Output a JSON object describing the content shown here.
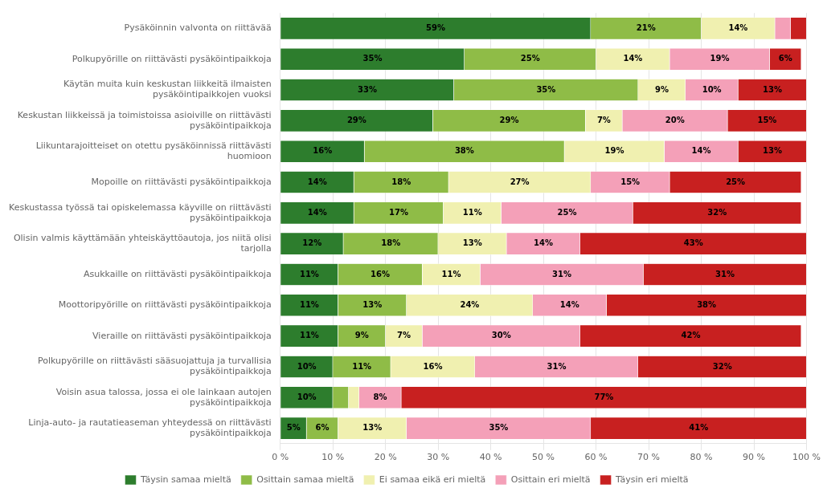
{
  "chart_data": {
    "type": "bar",
    "orientation": "horizontal",
    "stacked": true,
    "categories": [
      "Pysäköinnin valvonta on riittävää",
      "Polkupyörille on riittävästi pysäköintipaikkoja",
      "Käytän muita kuin keskustan liikkeitä ilmaisten\npysäköintipaikkojen vuoksi",
      "Keskustan liikkeissä ja toimistoissa asioiville on riittävästi\npysäköintipaikkoja",
      "Liikuntarajoitteiset on otettu pysäköinnissä riittävästi\nhuomioon",
      "Mopoille on riittävästi pysäköintipaikkoja",
      "Keskustassa työssä tai opiskelemassa käyville on riittävästi\npysäköintipaikkoja",
      "Olisin valmis käyttämään yhteiskäyttöautoja, jos niitä olisi\ntarjolla",
      "Asukkaille on riittävästi pysäköintipaikkoja",
      "Moottoripyörille on riittävästi pysäköintipaikkoja",
      "Vieraille on riittävästi pysäköintipaikkoja",
      "Polkupyörille on riittävästi sääsuojattuja ja turvallisia\npysäköintipaikkoja",
      "Voisin asua talossa, jossa ei ole lainkaan autojen\npysäköintipaikkoja",
      "Linja-auto- ja rautatieaseman yhteydessä on riittävästi\npysäköintipaikkoja"
    ],
    "series": [
      {
        "name": "Täysin samaa mieltä",
        "color": "#2d7d2d",
        "values": [
          59,
          35,
          33,
          29,
          16,
          14,
          14,
          12,
          11,
          11,
          11,
          10,
          10,
          5
        ],
        "value_labels": [
          "59%",
          "35%",
          "33%",
          "29%",
          "16%",
          "14%",
          "14%",
          "12%",
          "11%",
          "11%",
          "11%",
          "10%",
          "10%",
          "5%"
        ]
      },
      {
        "name": "Osittain samaa mieltä",
        "color": "#8fbc47",
        "values": [
          21,
          25,
          35,
          29,
          38,
          18,
          17,
          18,
          16,
          13,
          9,
          11,
          3,
          6
        ],
        "value_labels": [
          "21%",
          "25%",
          "35%",
          "29%",
          "38%",
          "18%",
          "17%",
          "18%",
          "16%",
          "13%",
          "9%",
          "11%",
          null,
          "6%"
        ]
      },
      {
        "name": "Ei samaa eikä eri mieltä",
        "color": "#f0f0b0",
        "values": [
          14,
          14,
          9,
          7,
          19,
          27,
          11,
          13,
          11,
          24,
          7,
          16,
          2,
          13
        ],
        "value_labels": [
          "14%",
          "14%",
          "9%",
          "7%",
          "19%",
          "27%",
          "11%",
          "13%",
          "11%",
          "24%",
          "7%",
          "16%",
          null,
          "13%"
        ]
      },
      {
        "name": "Osittain eri mieltä",
        "color": "#f4a0b8",
        "values": [
          3,
          19,
          10,
          20,
          14,
          15,
          25,
          14,
          31,
          14,
          30,
          31,
          8,
          35
        ],
        "value_labels": [
          null,
          "19%",
          "10%",
          "20%",
          "14%",
          "15%",
          "25%",
          "14%",
          "31%",
          "14%",
          "30%",
          "31%",
          "8%",
          "35%"
        ]
      },
      {
        "name": "Täysin eri mieltä",
        "color": "#c82020",
        "values": [
          3,
          6,
          13,
          15,
          13,
          25,
          32,
          43,
          31,
          38,
          42,
          32,
          77,
          41
        ],
        "value_labels": [
          null,
          "6%",
          "13%",
          "15%",
          "13%",
          "25%",
          "32%",
          "43%",
          "31%",
          "38%",
          "42%",
          "32%",
          "77%",
          "41%"
        ]
      }
    ],
    "xlim": [
      0,
      100
    ],
    "xticks": [
      {
        "value": 0,
        "label": "0 %"
      },
      {
        "value": 10,
        "label": "10 %"
      },
      {
        "value": 20,
        "label": "20 %"
      },
      {
        "value": 30,
        "label": "30 %"
      },
      {
        "value": 40,
        "label": "40 %"
      },
      {
        "value": 50,
        "label": "50 %"
      },
      {
        "value": 60,
        "label": "60 %"
      },
      {
        "value": 70,
        "label": "70 %"
      },
      {
        "value": 80,
        "label": "80 %"
      },
      {
        "value": 90,
        "label": "90 %"
      },
      {
        "value": 100,
        "label": "100 %"
      }
    ],
    "grid": true,
    "legend": "bottom",
    "data_labels": true
  }
}
